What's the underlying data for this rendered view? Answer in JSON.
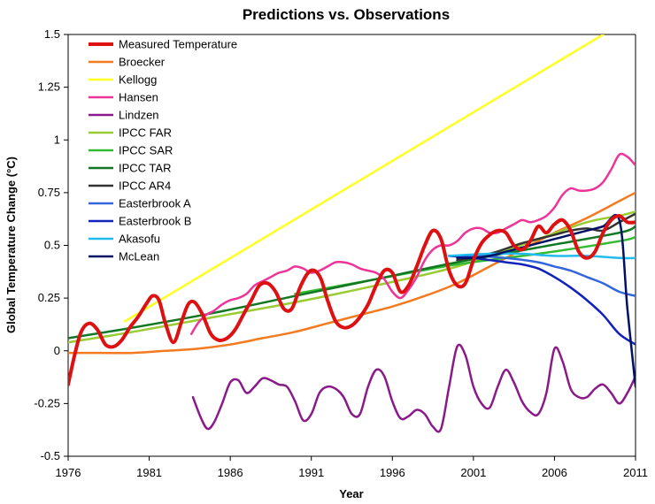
{
  "chart_data": {
    "type": "line",
    "title": "Predictions vs. Observations",
    "xlabel": "Year",
    "ylabel": "Global Temperature Change (°C)",
    "xlim": [
      1976,
      2011
    ],
    "ylim": [
      -0.5,
      1.5
    ],
    "xticks": [
      1976,
      1981,
      1986,
      1991,
      1996,
      2001,
      2006,
      2011
    ],
    "yticks": [
      -0.5,
      -0.25,
      0,
      0.25,
      0.5,
      0.75,
      1,
      1.25,
      1.5
    ],
    "ytick_labels": [
      "-0.5",
      "-0.25",
      "0",
      "0.25",
      "0.5",
      "0.75",
      "1",
      "1.25",
      "1.5"
    ],
    "legend_position": "top-left",
    "grid": false,
    "series": [
      {
        "name": "Measured Temperature",
        "color": "#dd1111",
        "width": 4,
        "x": [
          1976,
          1976.4,
          1976.8,
          1977.3,
          1977.8,
          1978.3,
          1978.8,
          1979.3,
          1979.8,
          1980.3,
          1980.8,
          1981.2,
          1981.6,
          1982.0,
          1982.5,
          1983.0,
          1983.4,
          1983.8,
          1984.3,
          1984.8,
          1985.3,
          1985.8,
          1986.3,
          1986.8,
          1987.3,
          1987.8,
          1988.3,
          1988.8,
          1989.3,
          1989.8,
          1990.3,
          1990.8,
          1991.2,
          1991.6,
          1992.0,
          1992.5,
          1993.0,
          1993.5,
          1994.0,
          1994.5,
          1995.0,
          1995.5,
          1996.0,
          1996.5,
          1997.0,
          1997.5,
          1998.0,
          1998.5,
          1999.0,
          1999.5,
          2000.0,
          2000.5,
          2001.0,
          2001.5,
          2002.0,
          2002.5,
          2003.0,
          2003.5,
          2004.0,
          2004.5,
          2005.0,
          2005.5,
          2006.0,
          2006.5,
          2007.0,
          2007.5,
          2008.0,
          2008.5,
          2009.0,
          2009.5,
          2010.0,
          2010.5,
          2011.0
        ],
        "y": [
          -0.16,
          -0.02,
          0.09,
          0.13,
          0.1,
          0.03,
          0.02,
          0.05,
          0.11,
          0.16,
          0.22,
          0.26,
          0.24,
          0.13,
          0.04,
          0.14,
          0.22,
          0.23,
          0.17,
          0.08,
          0.05,
          0.06,
          0.1,
          0.17,
          0.24,
          0.31,
          0.32,
          0.28,
          0.2,
          0.2,
          0.3,
          0.37,
          0.38,
          0.34,
          0.24,
          0.14,
          0.11,
          0.12,
          0.16,
          0.22,
          0.31,
          0.38,
          0.37,
          0.28,
          0.31,
          0.4,
          0.5,
          0.57,
          0.53,
          0.38,
          0.31,
          0.32,
          0.43,
          0.51,
          0.55,
          0.57,
          0.56,
          0.5,
          0.48,
          0.52,
          0.59,
          0.56,
          0.6,
          0.62,
          0.57,
          0.47,
          0.44,
          0.47,
          0.56,
          0.62,
          0.64,
          0.61,
          0.61
        ]
      },
      {
        "name": "Broecker",
        "color": "#f47a20",
        "width": 2.5,
        "x": [
          1976,
          1978,
          1980,
          1982,
          1984,
          1986,
          1988,
          1990,
          1992,
          1994,
          1996,
          1998,
          2000,
          2002,
          2004,
          2006,
          2008,
          2010,
          2011
        ],
        "y": [
          -0.01,
          -0.01,
          -0.01,
          0,
          0.01,
          0.03,
          0.06,
          0.09,
          0.13,
          0.17,
          0.21,
          0.26,
          0.32,
          0.4,
          0.48,
          0.56,
          0.63,
          0.71,
          0.75
        ]
      },
      {
        "name": "Kellogg",
        "color": "#ffff22",
        "width": 2.5,
        "x": [
          1979.5,
          2009
        ],
        "y": [
          0.14,
          1.5
        ]
      },
      {
        "name": "Hansen",
        "color": "#ee3399",
        "width": 2.5,
        "x": [
          1983.6,
          1984,
          1984.5,
          1985,
          1985.5,
          1986,
          1986.5,
          1987,
          1987.5,
          1988,
          1988.5,
          1989,
          1989.5,
          1990,
          1990.5,
          1991,
          1991.5,
          1992,
          1992.5,
          1993,
          1993.5,
          1994,
          1994.5,
          1995,
          1995.5,
          1996,
          1996.5,
          1997,
          1997.5,
          1998,
          1998.5,
          1999,
          1999.5,
          2000,
          2000.5,
          2001,
          2001.5,
          2002,
          2002.5,
          2003,
          2003.5,
          2004,
          2004.5,
          2005,
          2005.5,
          2006,
          2006.5,
          2007,
          2007.5,
          2008,
          2008.5,
          2009,
          2009.5,
          2010,
          2010.5,
          2011
        ],
        "y": [
          0.08,
          0.13,
          0.17,
          0.19,
          0.22,
          0.24,
          0.25,
          0.27,
          0.31,
          0.33,
          0.35,
          0.37,
          0.38,
          0.4,
          0.39,
          0.37,
          0.38,
          0.4,
          0.42,
          0.42,
          0.41,
          0.39,
          0.38,
          0.37,
          0.34,
          0.28,
          0.25,
          0.29,
          0.35,
          0.43,
          0.48,
          0.5,
          0.5,
          0.52,
          0.56,
          0.58,
          0.58,
          0.56,
          0.56,
          0.58,
          0.6,
          0.62,
          0.61,
          0.62,
          0.64,
          0.68,
          0.74,
          0.77,
          0.76,
          0.76,
          0.77,
          0.8,
          0.86,
          0.93,
          0.92,
          0.88
        ]
      },
      {
        "name": "Lindzen",
        "color": "#8a1a8a",
        "width": 2.5,
        "x": [
          1983.7,
          1984.2,
          1984.6,
          1985,
          1985.5,
          1986,
          1986.5,
          1987,
          1987.5,
          1988,
          1988.5,
          1989,
          1989.5,
          1990,
          1990.5,
          1991,
          1991.5,
          1992,
          1992.5,
          1993,
          1993.5,
          1994,
          1994.5,
          1995,
          1995.5,
          1996,
          1996.5,
          1997,
          1997.5,
          1998,
          1998.5,
          1999,
          1999.5,
          2000,
          2000.5,
          2001,
          2001.5,
          2002,
          2002.5,
          2003,
          2003.5,
          2004,
          2004.5,
          2005,
          2005.5,
          2006,
          2006.5,
          2007,
          2007.5,
          2008,
          2008.5,
          2009,
          2009.5,
          2010,
          2010.5,
          2011
        ],
        "y": [
          -0.22,
          -0.32,
          -0.37,
          -0.34,
          -0.25,
          -0.15,
          -0.14,
          -0.2,
          -0.17,
          -0.13,
          -0.14,
          -0.16,
          -0.17,
          -0.24,
          -0.33,
          -0.3,
          -0.2,
          -0.17,
          -0.18,
          -0.22,
          -0.3,
          -0.3,
          -0.17,
          -0.09,
          -0.12,
          -0.24,
          -0.32,
          -0.31,
          -0.28,
          -0.3,
          -0.36,
          -0.37,
          -0.17,
          0.02,
          -0.02,
          -0.17,
          -0.25,
          -0.27,
          -0.17,
          -0.09,
          -0.15,
          -0.24,
          -0.29,
          -0.3,
          -0.2,
          0.01,
          -0.05,
          -0.18,
          -0.22,
          -0.22,
          -0.18,
          -0.16,
          -0.2,
          -0.25,
          -0.2,
          -0.12
        ]
      },
      {
        "name": "IPCC FAR",
        "color": "#99cc33",
        "width": 2.5,
        "x": [
          1976,
          1980,
          1985,
          1990,
          1995,
          2000,
          2005,
          2008,
          2010,
          2011
        ],
        "y": [
          0.04,
          0.09,
          0.16,
          0.23,
          0.31,
          0.4,
          0.53,
          0.61,
          0.64,
          0.66
        ]
      },
      {
        "name": "IPCC SAR",
        "color": "#33bb33",
        "width": 2.5,
        "x": [
          1990,
          1995,
          2000,
          2005,
          2010,
          2011
        ],
        "y": [
          0.27,
          0.34,
          0.41,
          0.46,
          0.52,
          0.54
        ]
      },
      {
        "name": "IPCC TAR",
        "color": "#117722",
        "width": 2.5,
        "x": [
          1976,
          1980,
          1985,
          1990,
          1995,
          2000,
          2005,
          2010,
          2011
        ],
        "y": [
          0.06,
          0.11,
          0.18,
          0.26,
          0.34,
          0.42,
          0.49,
          0.56,
          0.59
        ]
      },
      {
        "name": "IPCC AR4",
        "color": "#333333",
        "width": 2.5,
        "x": [
          2000,
          2002,
          2004,
          2006,
          2007,
          2008,
          2009,
          2010,
          2011
        ],
        "y": [
          0.43,
          0.46,
          0.51,
          0.55,
          0.57,
          0.58,
          0.57,
          0.61,
          0.65
        ]
      },
      {
        "name": "Easterbrook A",
        "color": "#3366dd",
        "width": 2.5,
        "x": [
          1999.5,
          2001,
          2003,
          2005,
          2006,
          2007,
          2008,
          2009,
          2010,
          2011
        ],
        "y": [
          0.45,
          0.45,
          0.44,
          0.42,
          0.4,
          0.38,
          0.35,
          0.32,
          0.28,
          0.26
        ]
      },
      {
        "name": "Easterbrook B",
        "color": "#1122bb",
        "width": 2.5,
        "x": [
          1999.5,
          2001,
          2003,
          2004,
          2005,
          2006,
          2007,
          2008,
          2009,
          2010,
          2011
        ],
        "y": [
          0.45,
          0.44,
          0.42,
          0.41,
          0.39,
          0.35,
          0.3,
          0.24,
          0.17,
          0.08,
          0.03
        ]
      },
      {
        "name": "Akasofu",
        "color": "#22bbee",
        "width": 2.5,
        "x": [
          1999.5,
          2002,
          2004,
          2006,
          2008,
          2010,
          2011
        ],
        "y": [
          0.45,
          0.46,
          0.46,
          0.45,
          0.45,
          0.44,
          0.44
        ]
      },
      {
        "name": "McLean",
        "color": "#001166",
        "width": 2.5,
        "x": [
          2000,
          2001,
          2002,
          2003,
          2004,
          2005,
          2006,
          2007,
          2008,
          2009,
          2010,
          2010.5,
          2011
        ],
        "y": [
          0.44,
          0.44,
          0.45,
          0.47,
          0.49,
          0.51,
          0.53,
          0.55,
          0.57,
          0.59,
          0.62,
          0.2,
          -0.17
        ]
      }
    ]
  }
}
